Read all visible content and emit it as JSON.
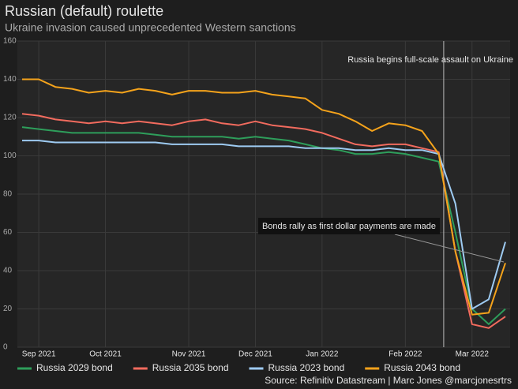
{
  "chart_data": {
    "type": "line",
    "title": "Russian (default) roulette",
    "subtitle": "Ukraine invasion caused unprecedented Western sanctions",
    "source": "Source: Refinitiv Datastream | Marc Jones @marcjonesrtrs",
    "categories": [
      null,
      "Sep 2021",
      null,
      null,
      null,
      "Oct 2021",
      null,
      null,
      null,
      null,
      "Nov 2021",
      null,
      null,
      null,
      "Dec 2021",
      null,
      null,
      null,
      "Jan 2022",
      null,
      null,
      null,
      null,
      "Feb 2022",
      null,
      null,
      null,
      "Mar 2022",
      null,
      null
    ],
    "series": [
      {
        "name": "Russia 2029 bond",
        "color": "#2e9e5b",
        "values": [
          115,
          114,
          113,
          112,
          112,
          112,
          112,
          112,
          111,
          110,
          110,
          110,
          110,
          109,
          110,
          109,
          108,
          106,
          104,
          103,
          101,
          101,
          102,
          101,
          99,
          97,
          60,
          20,
          12,
          20
        ]
      },
      {
        "name": "Russia 2035 bond",
        "color": "#f26b5e",
        "values": [
          122,
          121,
          119,
          118,
          117,
          118,
          117,
          118,
          117,
          116,
          118,
          119,
          117,
          116,
          118,
          116,
          115,
          114,
          112,
          109,
          106,
          105,
          106,
          106,
          104,
          102,
          50,
          12,
          10,
          16
        ]
      },
      {
        "name": "Russia 2023 bond",
        "color": "#9ecbf2",
        "values": [
          108,
          108,
          107,
          107,
          107,
          107,
          107,
          107,
          107,
          106,
          106,
          106,
          106,
          105,
          105,
          105,
          105,
          104,
          104,
          104,
          103,
          103,
          104,
          103,
          103,
          101,
          75,
          20,
          25,
          55
        ]
      },
      {
        "name": "Russia 2043 bond",
        "color": "#f5a31b",
        "values": [
          140,
          140,
          136,
          135,
          133,
          134,
          133,
          135,
          134,
          132,
          134,
          134,
          133,
          133,
          134,
          132,
          131,
          130,
          124,
          122,
          118,
          113,
          117,
          116,
          113,
          101,
          50,
          17,
          18,
          44
        ]
      }
    ],
    "ylim": [
      0,
      160
    ],
    "yticks": [
      0,
      20,
      40,
      60,
      80,
      100,
      120,
      140,
      160
    ],
    "grid": true,
    "annotations": [
      "Russia begins full-scale assault on Ukraine",
      "Bonds rally as first dollar payments are made"
    ]
  }
}
